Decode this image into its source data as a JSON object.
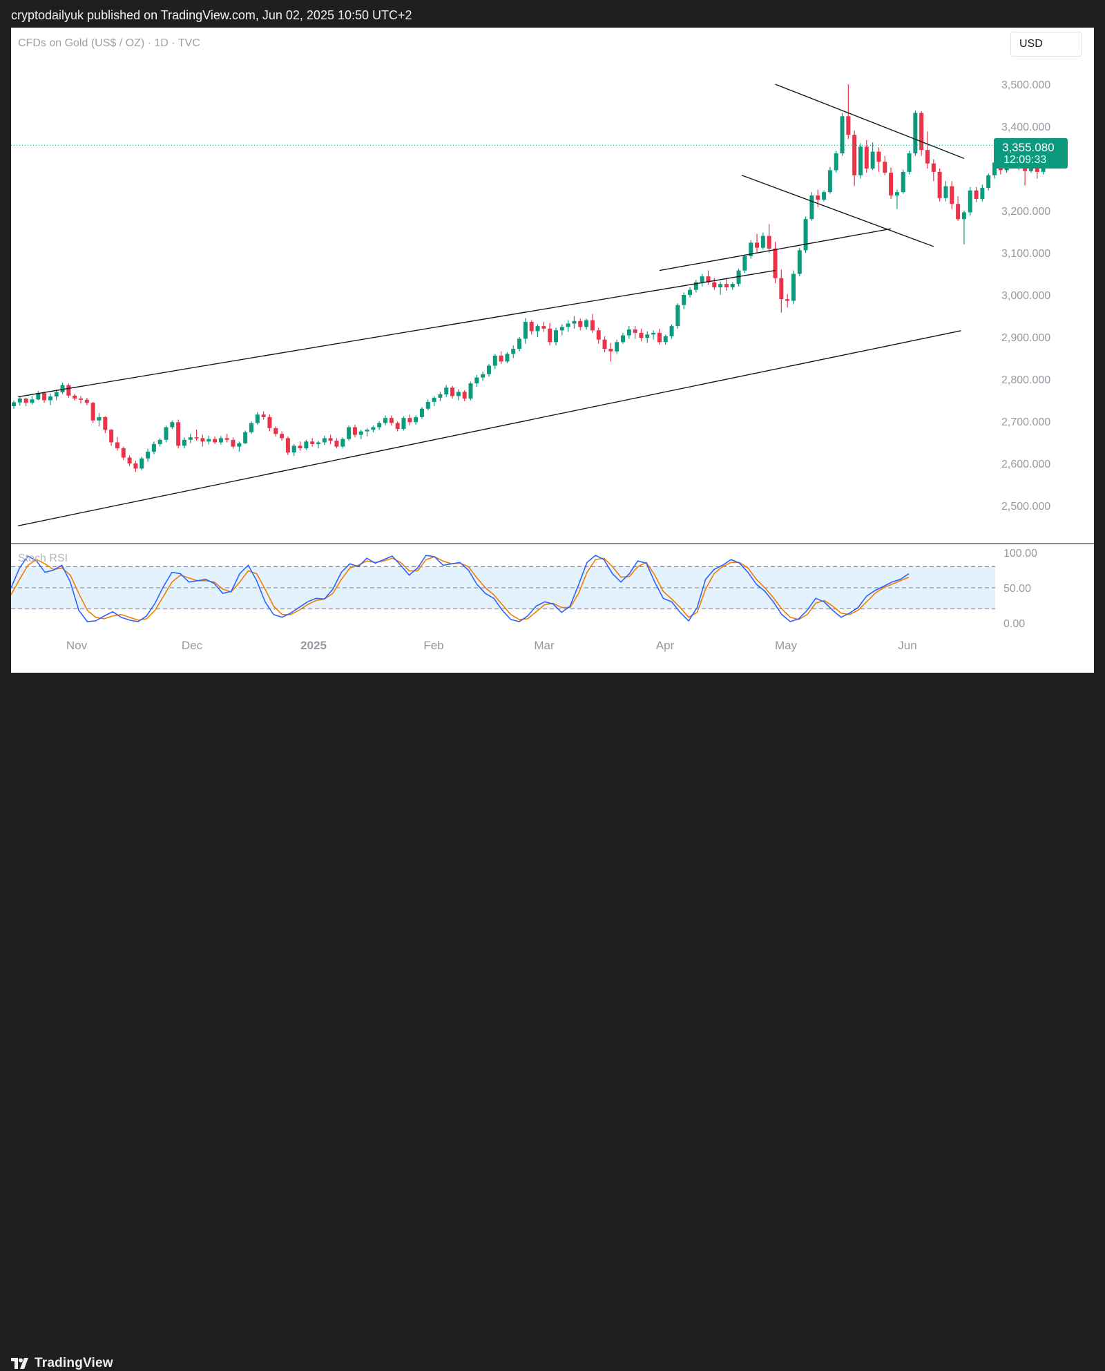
{
  "header": {
    "publish_text": "cryptodailyuk published on TradingView.com, Jun 02, 2025 10:50 UTC+2"
  },
  "chart_header": {
    "symbol_text": "CFDs on Gold (US$ / OZ) · 1D · TVC",
    "currency_button": "USD"
  },
  "price_scale": {
    "labels": [
      "3,500.000",
      "3,400.000",
      "3,200.000",
      "3,100.000",
      "3,000.000",
      "2,900.000",
      "2,800.000",
      "2,700.000",
      "2,600.000",
      "2,500.000"
    ],
    "current_price": "3,355.080",
    "countdown": "12:09:33"
  },
  "indicator": {
    "name": "Stoch RSI",
    "labels": [
      "100.00",
      "50.00",
      "0.00"
    ]
  },
  "time_axis": {
    "labels": [
      "Nov",
      "Dec",
      "2025",
      "Feb",
      "Mar",
      "Apr",
      "May",
      "Jun"
    ]
  },
  "footer": {
    "brand": "TradingView"
  },
  "colors": {
    "up": "#0c9a7e",
    "down": "#e8334a",
    "k_line": "#2962ff",
    "d_line": "#f57c00",
    "band_fill": "#e3f2fd"
  },
  "chart_data": {
    "type": "candlestick",
    "price_range": [
      2445,
      3550
    ],
    "current_price": 3355.08,
    "ohlc": [
      [
        2736,
        2749,
        2730,
        2745
      ],
      [
        2745,
        2760,
        2737,
        2754
      ],
      [
        2754,
        2756,
        2736,
        2744
      ],
      [
        2744,
        2760,
        2740,
        2752
      ],
      [
        2752,
        2772,
        2750,
        2767
      ],
      [
        2767,
        2770,
        2744,
        2750
      ],
      [
        2750,
        2765,
        2738,
        2759
      ],
      [
        2759,
        2775,
        2750,
        2769
      ],
      [
        2769,
        2792,
        2765,
        2786
      ],
      [
        2786,
        2790,
        2756,
        2761
      ],
      [
        2761,
        2765,
        2749,
        2754
      ],
      [
        2754,
        2760,
        2742,
        2751
      ],
      [
        2751,
        2756,
        2738,
        2744
      ],
      [
        2744,
        2746,
        2696,
        2702
      ],
      [
        2702,
        2720,
        2688,
        2710
      ],
      [
        2710,
        2712,
        2672,
        2680
      ],
      [
        2680,
        2682,
        2642,
        2650
      ],
      [
        2650,
        2663,
        2630,
        2636
      ],
      [
        2636,
        2640,
        2608,
        2614
      ],
      [
        2614,
        2619,
        2594,
        2600
      ],
      [
        2600,
        2606,
        2580,
        2588
      ],
      [
        2588,
        2616,
        2584,
        2612
      ],
      [
        2612,
        2635,
        2604,
        2628
      ],
      [
        2628,
        2652,
        2622,
        2646
      ],
      [
        2646,
        2660,
        2640,
        2656
      ],
      [
        2656,
        2690,
        2650,
        2686
      ],
      [
        2686,
        2702,
        2682,
        2698
      ],
      [
        2698,
        2704,
        2636,
        2642
      ],
      [
        2642,
        2662,
        2636,
        2656
      ],
      [
        2656,
        2670,
        2648,
        2662
      ],
      [
        2662,
        2680,
        2654,
        2660
      ],
      [
        2660,
        2668,
        2640,
        2652
      ],
      [
        2652,
        2666,
        2645,
        2658
      ],
      [
        2658,
        2664,
        2646,
        2650
      ],
      [
        2650,
        2665,
        2645,
        2660
      ],
      [
        2660,
        2670,
        2650,
        2656
      ],
      [
        2656,
        2662,
        2635,
        2640
      ],
      [
        2640,
        2652,
        2628,
        2648
      ],
      [
        2648,
        2678,
        2646,
        2674
      ],
      [
        2674,
        2700,
        2670,
        2696
      ],
      [
        2696,
        2722,
        2692,
        2716
      ],
      [
        2716,
        2724,
        2704,
        2710
      ],
      [
        2710,
        2716,
        2676,
        2684
      ],
      [
        2684,
        2688,
        2664,
        2670
      ],
      [
        2670,
        2676,
        2654,
        2660
      ],
      [
        2660,
        2664,
        2620,
        2626
      ],
      [
        2626,
        2646,
        2618,
        2642
      ],
      [
        2642,
        2652,
        2630,
        2636
      ],
      [
        2636,
        2656,
        2632,
        2652
      ],
      [
        2652,
        2660,
        2640,
        2646
      ],
      [
        2646,
        2654,
        2636,
        2650
      ],
      [
        2650,
        2666,
        2644,
        2660
      ],
      [
        2660,
        2668,
        2646,
        2654
      ],
      [
        2654,
        2660,
        2636,
        2640
      ],
      [
        2640,
        2662,
        2636,
        2658
      ],
      [
        2658,
        2690,
        2654,
        2686
      ],
      [
        2686,
        2692,
        2662,
        2668
      ],
      [
        2668,
        2680,
        2658,
        2676
      ],
      [
        2676,
        2684,
        2664,
        2680
      ],
      [
        2680,
        2690,
        2674,
        2686
      ],
      [
        2686,
        2700,
        2680,
        2696
      ],
      [
        2696,
        2714,
        2690,
        2708
      ],
      [
        2708,
        2714,
        2690,
        2696
      ],
      [
        2696,
        2700,
        2676,
        2682
      ],
      [
        2682,
        2712,
        2678,
        2708
      ],
      [
        2708,
        2716,
        2690,
        2698
      ],
      [
        2698,
        2714,
        2692,
        2710
      ],
      [
        2710,
        2734,
        2706,
        2730
      ],
      [
        2730,
        2752,
        2726,
        2746
      ],
      [
        2746,
        2760,
        2736,
        2756
      ],
      [
        2756,
        2770,
        2748,
        2764
      ],
      [
        2764,
        2786,
        2758,
        2780
      ],
      [
        2780,
        2784,
        2754,
        2760
      ],
      [
        2760,
        2776,
        2750,
        2770
      ],
      [
        2770,
        2774,
        2748,
        2754
      ],
      [
        2754,
        2794,
        2750,
        2790
      ],
      [
        2790,
        2810,
        2782,
        2804
      ],
      [
        2804,
        2818,
        2796,
        2812
      ],
      [
        2812,
        2836,
        2806,
        2832
      ],
      [
        2832,
        2860,
        2824,
        2856
      ],
      [
        2856,
        2866,
        2836,
        2842
      ],
      [
        2842,
        2864,
        2838,
        2860
      ],
      [
        2860,
        2880,
        2850,
        2872
      ],
      [
        2872,
        2900,
        2866,
        2896
      ],
      [
        2896,
        2945,
        2884,
        2936
      ],
      [
        2936,
        2940,
        2906,
        2914
      ],
      [
        2914,
        2930,
        2900,
        2926
      ],
      [
        2926,
        2936,
        2912,
        2920
      ],
      [
        2920,
        2934,
        2880,
        2888
      ],
      [
        2888,
        2922,
        2880,
        2916
      ],
      [
        2916,
        2930,
        2904,
        2924
      ],
      [
        2924,
        2940,
        2912,
        2932
      ],
      [
        2932,
        2950,
        2920,
        2938
      ],
      [
        2938,
        2944,
        2916,
        2924
      ],
      [
        2924,
        2944,
        2918,
        2940
      ],
      [
        2940,
        2955,
        2910,
        2916
      ],
      [
        2916,
        2922,
        2884,
        2894
      ],
      [
        2894,
        2902,
        2864,
        2872
      ],
      [
        2872,
        2886,
        2842,
        2866
      ],
      [
        2866,
        2894,
        2860,
        2888
      ],
      [
        2888,
        2910,
        2884,
        2904
      ],
      [
        2904,
        2926,
        2896,
        2918
      ],
      [
        2918,
        2926,
        2896,
        2910
      ],
      [
        2910,
        2920,
        2890,
        2898
      ],
      [
        2898,
        2914,
        2886,
        2906
      ],
      [
        2906,
        2916,
        2894,
        2910
      ],
      [
        2910,
        2920,
        2882,
        2888
      ],
      [
        2888,
        2906,
        2882,
        2902
      ],
      [
        2902,
        2930,
        2896,
        2926
      ],
      [
        2926,
        2980,
        2920,
        2976
      ],
      [
        2976,
        3006,
        2966,
        3000
      ],
      [
        3000,
        3018,
        2994,
        3012
      ],
      [
        3012,
        3036,
        3006,
        3030
      ],
      [
        3030,
        3050,
        3020,
        3044
      ],
      [
        3044,
        3058,
        3024,
        3030
      ],
      [
        3030,
        3040,
        3012,
        3018
      ],
      [
        3018,
        3032,
        3000,
        3026
      ],
      [
        3026,
        3040,
        3010,
        3018
      ],
      [
        3018,
        3030,
        3012,
        3026
      ],
      [
        3026,
        3062,
        3020,
        3058
      ],
      [
        3058,
        3096,
        3052,
        3092
      ],
      [
        3092,
        3130,
        3086,
        3124
      ],
      [
        3124,
        3145,
        3100,
        3112
      ],
      [
        3112,
        3148,
        3108,
        3140
      ],
      [
        3140,
        3168,
        3100,
        3110
      ],
      [
        3110,
        3126,
        3028,
        3040
      ],
      [
        3040,
        3060,
        2958,
        2990
      ],
      [
        2990,
        3002,
        2970,
        2986
      ],
      [
        2986,
        3058,
        2978,
        3050
      ],
      [
        3050,
        3112,
        3044,
        3106
      ],
      [
        3106,
        3186,
        3100,
        3180
      ],
      [
        3180,
        3244,
        3176,
        3236
      ],
      [
        3236,
        3250,
        3208,
        3226
      ],
      [
        3226,
        3248,
        3222,
        3244
      ],
      [
        3244,
        3304,
        3240,
        3296
      ],
      [
        3296,
        3342,
        3290,
        3336
      ],
      [
        3336,
        3432,
        3330,
        3424
      ],
      [
        3424,
        3500,
        3370,
        3380
      ],
      [
        3380,
        3390,
        3258,
        3284
      ],
      [
        3284,
        3360,
        3276,
        3352
      ],
      [
        3352,
        3368,
        3290,
        3300
      ],
      [
        3300,
        3362,
        3296,
        3340
      ],
      [
        3340,
        3350,
        3292,
        3316
      ],
      [
        3316,
        3330,
        3284,
        3290
      ],
      [
        3290,
        3302,
        3228,
        3236
      ],
      [
        3236,
        3250,
        3204,
        3244
      ],
      [
        3244,
        3298,
        3240,
        3292
      ],
      [
        3292,
        3342,
        3286,
        3336
      ],
      [
        3336,
        3438,
        3330,
        3432
      ],
      [
        3432,
        3436,
        3330,
        3344
      ],
      [
        3344,
        3388,
        3300,
        3312
      ],
      [
        3312,
        3322,
        3270,
        3292
      ],
      [
        3292,
        3300,
        3222,
        3230
      ],
      [
        3230,
        3270,
        3222,
        3258
      ],
      [
        3258,
        3270,
        3204,
        3216
      ],
      [
        3216,
        3234,
        3176,
        3180
      ],
      [
        3180,
        3200,
        3120,
        3196
      ],
      [
        3196,
        3256,
        3188,
        3248
      ],
      [
        3248,
        3256,
        3220,
        3228
      ],
      [
        3228,
        3262,
        3222,
        3254
      ],
      [
        3254,
        3288,
        3248,
        3284
      ],
      [
        3284,
        3320,
        3276,
        3314
      ],
      [
        3314,
        3328,
        3286,
        3296
      ],
      [
        3296,
        3360,
        3290,
        3354
      ],
      [
        3354,
        3360,
        3300,
        3306
      ],
      [
        3306,
        3332,
        3296,
        3324
      ],
      [
        3324,
        3330,
        3260,
        3294
      ],
      [
        3294,
        3332,
        3290,
        3322
      ],
      [
        3322,
        3328,
        3276,
        3292
      ],
      [
        3292,
        3360,
        3286,
        3355
      ]
    ],
    "trendlines": [
      {
        "from": [
          "2024-10-21",
          2758
        ],
        "to": [
          "2025-04-22",
          3058
        ]
      },
      {
        "from": [
          "2024-10-21",
          2452
        ],
        "to": [
          "2025-06-10",
          2915
        ]
      },
      {
        "from": [
          "2025-04-22",
          3500
        ],
        "to": [
          "2025-06-05",
          3324
        ]
      },
      {
        "from": [
          "2025-04-14",
          3284
        ],
        "to": [
          "2025-05-28",
          3115
        ]
      },
      {
        "from": [
          "2025-03-25",
          3058
        ],
        "to": [
          "2025-05-20",
          3157
        ]
      }
    ],
    "stoch_rsi": {
      "range": [
        0,
        100
      ],
      "bands": [
        20,
        80
      ],
      "k": [
        50,
        78,
        95,
        88,
        72,
        75,
        82,
        58,
        18,
        2,
        3,
        10,
        16,
        8,
        4,
        2,
        10,
        28,
        52,
        72,
        70,
        58,
        60,
        62,
        56,
        42,
        45,
        70,
        82,
        60,
        30,
        12,
        8,
        14,
        22,
        30,
        35,
        34,
        48,
        72,
        84,
        80,
        92,
        85,
        90,
        95,
        82,
        68,
        78,
        96,
        94,
        82,
        84,
        86,
        75,
        55,
        42,
        35,
        18,
        5,
        2,
        10,
        24,
        30,
        27,
        15,
        24,
        54,
        86,
        96,
        90,
        70,
        58,
        70,
        88,
        85,
        58,
        35,
        30,
        15,
        3,
        22,
        62,
        76,
        82,
        90,
        85,
        72,
        55,
        45,
        30,
        12,
        2,
        6,
        18,
        35,
        30,
        18,
        8,
        14,
        22,
        38,
        46,
        52,
        58,
        62,
        70
      ],
      "d": [
        40,
        62,
        82,
        90,
        84,
        76,
        78,
        68,
        42,
        18,
        8,
        6,
        10,
        12,
        8,
        4,
        6,
        18,
        38,
        58,
        68,
        64,
        60,
        60,
        58,
        48,
        44,
        58,
        74,
        70,
        48,
        24,
        12,
        12,
        18,
        26,
        32,
        34,
        42,
        62,
        78,
        82,
        88,
        86,
        88,
        92,
        86,
        74,
        74,
        90,
        94,
        88,
        84,
        85,
        80,
        64,
        50,
        40,
        26,
        12,
        5,
        6,
        16,
        26,
        28,
        22,
        22,
        42,
        72,
        90,
        92,
        80,
        65,
        66,
        80,
        86,
        68,
        45,
        34,
        22,
        8,
        15,
        48,
        70,
        80,
        86,
        86,
        78,
        62,
        50,
        36,
        20,
        8,
        5,
        12,
        28,
        32,
        24,
        14,
        12,
        18,
        30,
        42,
        50,
        55,
        60,
        65
      ]
    }
  }
}
